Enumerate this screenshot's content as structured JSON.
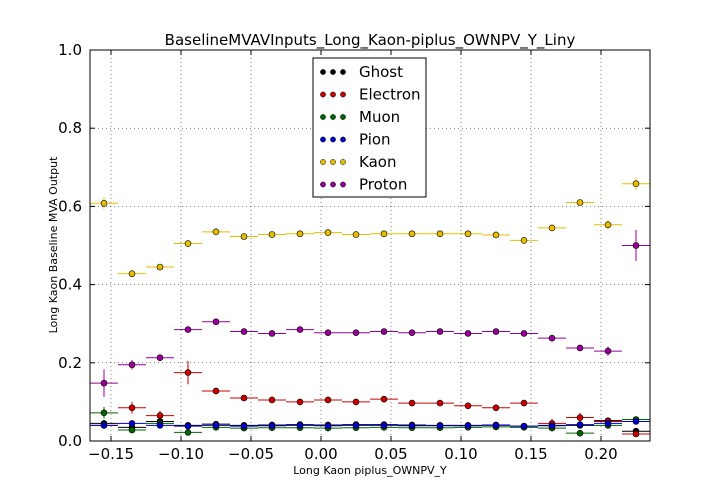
{
  "chart_data": {
    "type": "scatter",
    "title": "BaselineMVAVInputs_Long_Kaon-piplus_OWNPV_Y_Liny",
    "xlabel": "Long Kaon piplus_OWNPV_Y",
    "ylabel": "Long Kaon Baseline MVA Output",
    "xlim": [
      -0.165,
      0.235
    ],
    "ylim": [
      0.0,
      1.0
    ],
    "xticks": [
      -0.15,
      -0.1,
      -0.05,
      0.0,
      0.05,
      0.1,
      0.15,
      0.2
    ],
    "xtick_labels": [
      "−0.15",
      "−0.10",
      "−0.05",
      "0.00",
      "0.05",
      "0.10",
      "0.15",
      "0.20"
    ],
    "yticks": [
      0.0,
      0.2,
      0.4,
      0.6,
      0.8,
      1.0
    ],
    "ytick_labels": [
      "0.0",
      "0.2",
      "0.4",
      "0.6",
      "0.8",
      "1.0"
    ],
    "grid": true,
    "legend_position": "top-center",
    "bin_half_width": 0.01,
    "x": [
      -0.155,
      -0.135,
      -0.115,
      -0.095,
      -0.075,
      -0.055,
      -0.035,
      -0.015,
      0.005,
      0.025,
      0.045,
      0.065,
      0.085,
      0.105,
      0.125,
      0.145,
      0.165,
      0.185,
      0.205,
      0.225
    ],
    "series": [
      {
        "name": "Ghost",
        "color": "#000000",
        "values": [
          0.045,
          0.035,
          0.05,
          0.04,
          0.043,
          0.04,
          0.041,
          0.042,
          0.041,
          0.042,
          0.042,
          0.041,
          0.04,
          0.04,
          0.041,
          0.038,
          0.04,
          0.04,
          0.052,
          0.025
        ],
        "errors": [
          0.004,
          0.003,
          0.003,
          0.003,
          0.002,
          0.002,
          0.002,
          0.002,
          0.002,
          0.002,
          0.002,
          0.002,
          0.002,
          0.002,
          0.002,
          0.002,
          0.003,
          0.003,
          0.004,
          0.006
        ]
      },
      {
        "name": "Electron",
        "color": "#cc0000",
        "values": [
          0.04,
          0.085,
          0.065,
          0.175,
          0.128,
          0.11,
          0.105,
          0.1,
          0.105,
          0.1,
          0.107,
          0.097,
          0.097,
          0.09,
          0.085,
          0.097,
          0.045,
          0.06,
          0.05,
          0.018
        ],
        "errors": [
          0.008,
          0.015,
          0.012,
          0.03,
          0.008,
          0.005,
          0.004,
          0.004,
          0.004,
          0.004,
          0.004,
          0.004,
          0.004,
          0.004,
          0.005,
          0.006,
          0.012,
          0.012,
          0.01,
          0.006
        ]
      },
      {
        "name": "Muon",
        "color": "#006600",
        "values": [
          0.072,
          0.028,
          0.045,
          0.022,
          0.035,
          0.033,
          0.034,
          0.034,
          0.033,
          0.034,
          0.035,
          0.034,
          0.034,
          0.035,
          0.036,
          0.035,
          0.033,
          0.02,
          0.04,
          0.055
        ],
        "errors": [
          0.015,
          0.005,
          0.006,
          0.004,
          0.003,
          0.002,
          0.002,
          0.002,
          0.002,
          0.002,
          0.002,
          0.002,
          0.002,
          0.002,
          0.002,
          0.002,
          0.003,
          0.003,
          0.004,
          0.005
        ]
      },
      {
        "name": "Pion",
        "color": "#0000cc",
        "values": [
          0.04,
          0.045,
          0.04,
          0.038,
          0.04,
          0.038,
          0.039,
          0.04,
          0.039,
          0.04,
          0.04,
          0.039,
          0.039,
          0.039,
          0.04,
          0.038,
          0.039,
          0.042,
          0.045,
          0.05
        ],
        "errors": [
          0.003,
          0.002,
          0.002,
          0.002,
          0.001,
          0.001,
          0.001,
          0.001,
          0.001,
          0.001,
          0.001,
          0.001,
          0.001,
          0.001,
          0.001,
          0.001,
          0.002,
          0.002,
          0.003,
          0.004
        ]
      },
      {
        "name": "Kaon",
        "color": "#e6c000",
        "values": [
          0.608,
          0.428,
          0.445,
          0.505,
          0.535,
          0.523,
          0.528,
          0.53,
          0.533,
          0.528,
          0.53,
          0.53,
          0.53,
          0.53,
          0.527,
          0.513,
          0.545,
          0.61,
          0.553,
          0.658
        ],
        "errors": [
          0.015,
          0.008,
          0.006,
          0.006,
          0.004,
          0.003,
          0.003,
          0.003,
          0.003,
          0.003,
          0.003,
          0.003,
          0.003,
          0.003,
          0.003,
          0.004,
          0.005,
          0.006,
          0.012,
          0.015
        ]
      },
      {
        "name": "Proton",
        "color": "#990099",
        "values": [
          0.148,
          0.195,
          0.213,
          0.285,
          0.305,
          0.28,
          0.275,
          0.285,
          0.277,
          0.277,
          0.28,
          0.277,
          0.28,
          0.275,
          0.28,
          0.275,
          0.263,
          0.238,
          0.23,
          0.5
        ],
        "errors": [
          0.035,
          0.012,
          0.007,
          0.006,
          0.004,
          0.003,
          0.003,
          0.003,
          0.003,
          0.003,
          0.003,
          0.003,
          0.003,
          0.003,
          0.003,
          0.004,
          0.005,
          0.008,
          0.012,
          0.04
        ]
      }
    ]
  }
}
